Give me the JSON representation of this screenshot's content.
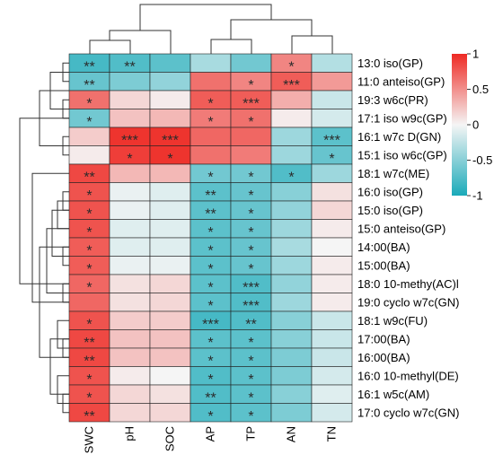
{
  "chart_data": {
    "type": "heatmap",
    "columns": [
      "SWC",
      "pH",
      "SOC",
      "AP",
      "TP",
      "AN",
      "TN"
    ],
    "rows": [
      "13:0 iso(GP)",
      "11:0 anteiso(GP)",
      "19:3 w6c(PR)",
      "17:1 iso w9c(GP)",
      "16:1 w7c D(GN)",
      "15:1 iso w6c(GP)",
      "18:1 w7c(ME)",
      "16:0 iso(GP)",
      "15:0 iso(GP)",
      "15:0 anteiso(GP)",
      "14:00(BA)",
      "15:00(BA)",
      "18:0 10-methy(AC)l",
      "19:0 cyclo w7c(GN)",
      "18:1 w9c(FU)",
      "17:00(BA)",
      "16:00(BA)",
      "16:0 10-methyl(DE)",
      "16:1 w5c(AM)",
      "17:0 cyclo w7c(GN)"
    ],
    "values": [
      [
        -0.8,
        -0.75,
        -0.7,
        -0.35,
        -0.6,
        0.55,
        -0.3
      ],
      [
        -0.65,
        -0.55,
        -0.45,
        0.65,
        0.55,
        0.75,
        0.45
      ],
      [
        0.65,
        0.15,
        0.05,
        0.75,
        0.75,
        0.35,
        -0.2
      ],
      [
        -0.6,
        0.25,
        0.3,
        0.6,
        0.65,
        0.05,
        -0.15
      ],
      [
        0.2,
        0.95,
        0.95,
        0.7,
        0.7,
        -0.4,
        -0.7
      ],
      [
        0.05,
        0.9,
        0.95,
        0.65,
        0.6,
        -0.4,
        -0.65
      ],
      [
        0.85,
        0.3,
        0.3,
        -0.6,
        -0.6,
        -0.75,
        -0.4
      ],
      [
        0.8,
        -0.05,
        -0.1,
        -0.7,
        -0.65,
        -0.5,
        0.1
      ],
      [
        0.8,
        -0.05,
        -0.1,
        -0.7,
        -0.65,
        -0.45,
        0.15
      ],
      [
        0.8,
        -0.1,
        -0.1,
        -0.7,
        -0.65,
        -0.4,
        0.05
      ],
      [
        0.75,
        -0.1,
        -0.1,
        -0.7,
        -0.65,
        -0.35,
        0.0
      ],
      [
        0.75,
        -0.05,
        -0.05,
        -0.7,
        -0.65,
        -0.4,
        0.05
      ],
      [
        0.7,
        0.1,
        0.15,
        -0.7,
        -0.75,
        -0.45,
        0.05
      ],
      [
        0.7,
        0.1,
        0.15,
        -0.7,
        -0.75,
        -0.4,
        0.05
      ],
      [
        0.8,
        0.2,
        0.2,
        -0.8,
        -0.75,
        -0.5,
        -0.2
      ],
      [
        0.85,
        0.25,
        0.25,
        -0.7,
        -0.7,
        -0.5,
        -0.2
      ],
      [
        0.85,
        0.25,
        0.25,
        -0.7,
        -0.7,
        -0.55,
        -0.2
      ],
      [
        0.8,
        0.05,
        0.0,
        -0.75,
        -0.7,
        -0.55,
        -0.15
      ],
      [
        0.8,
        0.15,
        0.1,
        -0.75,
        -0.7,
        -0.5,
        -0.1
      ],
      [
        0.85,
        0.15,
        0.15,
        -0.75,
        -0.7,
        -0.55,
        -0.15
      ]
    ],
    "significance": [
      [
        "**",
        "**",
        "",
        "",
        "",
        "*",
        ""
      ],
      [
        "**",
        "",
        "",
        "",
        "*",
        "***",
        ""
      ],
      [
        "*",
        "",
        "",
        "*",
        "***",
        "",
        ""
      ],
      [
        "*",
        "",
        "",
        "*",
        "*",
        "",
        ""
      ],
      [
        "",
        "***",
        "***",
        "",
        "",
        "",
        "***"
      ],
      [
        "",
        "*",
        "*",
        "",
        "",
        "",
        "*"
      ],
      [
        "**",
        "",
        "",
        "*",
        "*",
        "*",
        ""
      ],
      [
        "*",
        "",
        "",
        "**",
        "*",
        "",
        ""
      ],
      [
        "*",
        "",
        "",
        "**",
        "*",
        "",
        ""
      ],
      [
        "*",
        "",
        "",
        "*",
        "*",
        "",
        ""
      ],
      [
        "*",
        "",
        "",
        "*",
        "*",
        "",
        ""
      ],
      [
        "*",
        "",
        "",
        "*",
        "*",
        "",
        ""
      ],
      [
        "*",
        "",
        "",
        "*",
        "***",
        "",
        ""
      ],
      [
        "",
        "",
        "",
        "*",
        "***",
        "",
        ""
      ],
      [
        "*",
        "",
        "",
        "***",
        "**",
        "",
        ""
      ],
      [
        "**",
        "",
        "",
        "*",
        "*",
        "",
        ""
      ],
      [
        "**",
        "",
        "",
        "*",
        "*",
        "",
        ""
      ],
      [
        "*",
        "",
        "",
        "*",
        "*",
        "",
        ""
      ],
      [
        "*",
        "",
        "",
        "**",
        "*",
        "",
        ""
      ],
      [
        "**",
        "",
        "",
        "*",
        "*",
        "",
        ""
      ]
    ],
    "color_scale": {
      "min": -1,
      "max": 1,
      "low_color": "#1aaab9",
      "mid_color": "#f5f5f5",
      "high_color": "#ee2a24",
      "tick_labels": [
        "1",
        "0.5",
        "0",
        "-0.5",
        "-1"
      ],
      "ticks": [
        1,
        0.5,
        0,
        -0.5,
        -1
      ]
    },
    "legend_position": "right",
    "grid": true,
    "column_dendrogram": true,
    "row_dendrogram": true
  }
}
